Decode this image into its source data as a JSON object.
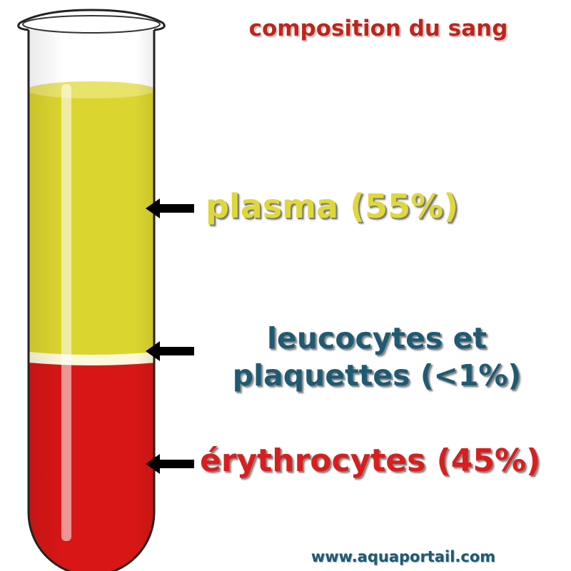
{
  "title": "composition du sang",
  "components": [
    {
      "name": "plasma",
      "label": "plasma (55%)",
      "percent": 55,
      "color": "#dbd530"
    },
    {
      "name": "leucocytes-plaquettes",
      "label_line1": "leucocytes et",
      "label_line2": "plaquettes (<1%)",
      "percent": 1,
      "color": "#fbf8dc"
    },
    {
      "name": "erythrocytes",
      "label": "érythrocytes (45%)",
      "percent": 45,
      "color": "#d81616"
    }
  ],
  "colors": {
    "title": "#c0241a",
    "plasma_text": "#e0d83a",
    "leuco_text": "#1f5a73",
    "ery_text": "#d81e1e",
    "footer_text": "#1f5a73",
    "arrow": "#000000"
  },
  "footer": "www.aquaportail.com",
  "icons": [
    "arrow-left-icon",
    "test-tube-icon"
  ]
}
